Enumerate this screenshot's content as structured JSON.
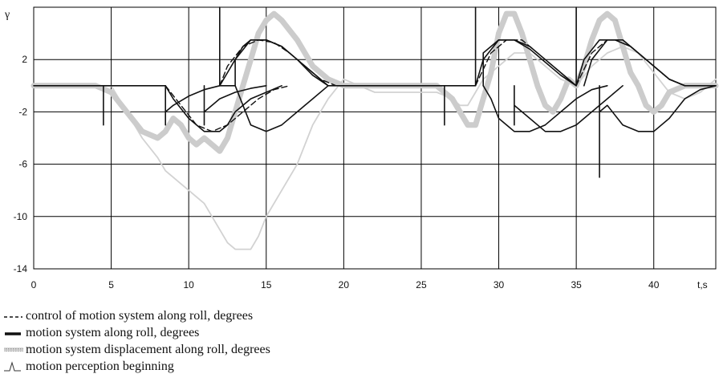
{
  "chart_data": {
    "type": "line",
    "title": "",
    "xlabel": "t,s",
    "ylabel": "γ",
    "xlim": [
      0,
      44
    ],
    "ylim": [
      -14,
      6
    ],
    "x_ticks": [
      0,
      5,
      10,
      15,
      20,
      25,
      30,
      35,
      40
    ],
    "y_ticks": [
      2,
      -2,
      -6,
      -10,
      -14
    ],
    "grid": true,
    "legend_position": "bottom-left",
    "legend": [
      {
        "symbol": "dashed-line",
        "label": "control of motion system along roll, degrees"
      },
      {
        "symbol": "solid-line",
        "label": "motion system along roll, degrees"
      },
      {
        "symbol": "hatched-thick-line",
        "label": "motion system displacement along roll, degrees"
      },
      {
        "symbol": "spike",
        "label": "motion perception beginning"
      }
    ],
    "series": [
      {
        "style": "thin-light-gray",
        "points": [
          [
            0,
            0
          ],
          [
            5,
            0
          ],
          [
            5.5,
            -1
          ],
          [
            6,
            -2
          ],
          [
            7,
            -4
          ],
          [
            8,
            -5.5
          ],
          [
            8.5,
            -6.5
          ],
          [
            9,
            -7
          ],
          [
            9.5,
            -7.5
          ],
          [
            10,
            -8
          ],
          [
            10.5,
            -8.5
          ],
          [
            11,
            -9
          ],
          [
            11.5,
            -10
          ],
          [
            12,
            -11
          ],
          [
            12.5,
            -12
          ],
          [
            13,
            -12.5
          ],
          [
            14,
            -12.5
          ],
          [
            14.5,
            -11.5
          ],
          [
            15,
            -10
          ],
          [
            16,
            -8
          ],
          [
            17,
            -6
          ],
          [
            18,
            -3
          ],
          [
            19,
            -1
          ],
          [
            20,
            0.5
          ],
          [
            21,
            0
          ],
          [
            22,
            -0.5
          ],
          [
            24,
            -0.5
          ],
          [
            26,
            -0.5
          ],
          [
            27,
            -1
          ],
          [
            27.5,
            -1.5
          ],
          [
            28,
            -1.5
          ],
          [
            28.5,
            -0.5
          ],
          [
            29,
            0.5
          ],
          [
            30,
            1.5
          ],
          [
            31,
            2.5
          ],
          [
            32,
            2.5
          ],
          [
            33,
            1.5
          ],
          [
            34,
            0.5
          ],
          [
            35,
            0
          ],
          [
            36,
            1.5
          ],
          [
            37,
            2.5
          ],
          [
            38,
            3
          ],
          [
            39,
            2.5
          ],
          [
            40,
            1
          ],
          [
            41,
            -0.5
          ],
          [
            42,
            -1
          ],
          [
            43,
            -0.5
          ],
          [
            44,
            0.5
          ]
        ]
      },
      {
        "style": "thick-light-gray",
        "points": [
          [
            0,
            0
          ],
          [
            4,
            0
          ],
          [
            5,
            -0.5
          ],
          [
            6,
            -2
          ],
          [
            7,
            -3.5
          ],
          [
            8,
            -4
          ],
          [
            8.5,
            -3.5
          ],
          [
            9,
            -2.5
          ],
          [
            9.5,
            -3
          ],
          [
            10,
            -4
          ],
          [
            10.5,
            -4.5
          ],
          [
            11,
            -4
          ],
          [
            11.5,
            -4.5
          ],
          [
            12,
            -5
          ],
          [
            12.5,
            -4
          ],
          [
            13,
            -2
          ],
          [
            13.5,
            0
          ],
          [
            14,
            2
          ],
          [
            14.5,
            4
          ],
          [
            15,
            5
          ],
          [
            15.5,
            5.5
          ],
          [
            16,
            5
          ],
          [
            17,
            3.5
          ],
          [
            18,
            1.5
          ],
          [
            19,
            0.5
          ],
          [
            20,
            0
          ],
          [
            26,
            0
          ],
          [
            26.5,
            -0.5
          ],
          [
            27,
            -1
          ],
          [
            27.5,
            -2
          ],
          [
            28,
            -3
          ],
          [
            28.5,
            -3
          ],
          [
            29,
            -1
          ],
          [
            29.5,
            1
          ],
          [
            30,
            4
          ],
          [
            30.5,
            5.5
          ],
          [
            31,
            5.5
          ],
          [
            31.5,
            4
          ],
          [
            32,
            2
          ],
          [
            32.5,
            0
          ],
          [
            33,
            -1.5
          ],
          [
            33.5,
            -2
          ],
          [
            34,
            -1
          ],
          [
            34.5,
            0.5
          ],
          [
            35,
            0
          ],
          [
            35.5,
            1.5
          ],
          [
            36,
            3.5
          ],
          [
            36.5,
            5
          ],
          [
            37,
            5.5
          ],
          [
            37.5,
            5
          ],
          [
            38,
            3
          ],
          [
            38.5,
            1
          ],
          [
            39,
            0
          ],
          [
            39.5,
            -1.5
          ],
          [
            40,
            -2
          ],
          [
            40.5,
            -1.5
          ],
          [
            41,
            -0.5
          ],
          [
            42,
            0
          ],
          [
            44,
            0
          ]
        ]
      },
      {
        "style": "solid-black",
        "points": [
          [
            0,
            0
          ],
          [
            4.5,
            0
          ],
          [
            4.5,
            -3
          ],
          [
            4.5,
            0
          ],
          [
            8.5,
            0
          ],
          [
            8.5,
            -3
          ],
          [
            8.5,
            -2
          ],
          [
            9,
            -1.5
          ],
          [
            10,
            -0.8
          ],
          [
            11,
            -0.3
          ],
          [
            12,
            0
          ],
          [
            13,
            0
          ],
          [
            13,
            2
          ],
          [
            14,
            3.5
          ],
          [
            15,
            3.5
          ],
          [
            16,
            3
          ],
          [
            17,
            2
          ],
          [
            18,
            1
          ],
          [
            19,
            0
          ],
          [
            20,
            0
          ],
          [
            28.5,
            0
          ],
          [
            28.5,
            6
          ],
          [
            28.5,
            0
          ],
          [
            29,
            2
          ],
          [
            30,
            3.5
          ],
          [
            31,
            3.5
          ],
          [
            32,
            3
          ],
          [
            33,
            2
          ],
          [
            34,
            1
          ],
          [
            35,
            0
          ],
          [
            35,
            6
          ],
          [
            35,
            0
          ],
          [
            35.5,
            2
          ],
          [
            36.5,
            3.5
          ],
          [
            37.5,
            3.5
          ],
          [
            38.5,
            3
          ],
          [
            39.5,
            2
          ],
          [
            41,
            0.5
          ],
          [
            42,
            0
          ],
          [
            44,
            0
          ]
        ]
      },
      {
        "style": "solid-black",
        "points": [
          [
            8.5,
            0
          ],
          [
            9,
            -1
          ],
          [
            10,
            -2.5
          ],
          [
            11,
            -3.5
          ],
          [
            12,
            -3.5
          ],
          [
            12.5,
            -3
          ],
          [
            13,
            -2
          ],
          [
            14,
            -1
          ],
          [
            15,
            -0.5
          ],
          [
            16,
            0
          ]
        ]
      },
      {
        "style": "solid-black",
        "points": [
          [
            11,
            0
          ],
          [
            11,
            -3
          ],
          [
            11,
            -2
          ],
          [
            11.5,
            -1.5
          ],
          [
            12,
            -1
          ],
          [
            13,
            -0.5
          ],
          [
            14,
            -0.2
          ],
          [
            15,
            0
          ]
        ]
      },
      {
        "style": "solid-black",
        "points": [
          [
            12,
            0
          ],
          [
            12,
            6
          ],
          [
            12,
            0
          ],
          [
            12.5,
            1
          ],
          [
            13,
            2
          ],
          [
            13.5,
            3
          ],
          [
            14,
            3.5
          ],
          [
            15,
            3.5
          ],
          [
            16,
            3
          ],
          [
            17,
            2
          ],
          [
            18,
            0.8
          ],
          [
            19,
            0
          ]
        ]
      },
      {
        "style": "solid-black",
        "points": [
          [
            13,
            0
          ],
          [
            13.5,
            -1.5
          ],
          [
            14,
            -3
          ],
          [
            15,
            -3.5
          ],
          [
            16,
            -3
          ],
          [
            17,
            -2
          ],
          [
            18,
            -1
          ],
          [
            19,
            0
          ]
        ]
      },
      {
        "style": "solid-black",
        "points": [
          [
            26.5,
            0
          ],
          [
            26.5,
            -3
          ],
          [
            26.5,
            0
          ]
        ]
      },
      {
        "style": "solid-black",
        "points": [
          [
            29,
            0
          ],
          [
            29.5,
            -1
          ],
          [
            30,
            -2.5
          ],
          [
            31,
            -3.5
          ],
          [
            32,
            -3.5
          ],
          [
            33,
            -3
          ],
          [
            34,
            -2
          ],
          [
            35,
            -1
          ],
          [
            36,
            -0.3
          ],
          [
            37,
            0
          ]
        ]
      },
      {
        "style": "solid-black",
        "points": [
          [
            31,
            0
          ],
          [
            31,
            -3
          ],
          [
            31,
            -1.5
          ],
          [
            32,
            -2.5
          ],
          [
            33,
            -3.5
          ],
          [
            34,
            -3.5
          ],
          [
            35,
            -3
          ],
          [
            36,
            -2
          ],
          [
            37,
            -1
          ],
          [
            38,
            0
          ]
        ]
      },
      {
        "style": "solid-black",
        "points": [
          [
            29,
            0
          ],
          [
            29,
            2.5
          ],
          [
            30,
            3.5
          ],
          [
            31,
            3.5
          ],
          [
            32,
            2.8
          ],
          [
            33,
            1.8
          ],
          [
            34,
            0.8
          ],
          [
            35,
            0
          ]
        ]
      },
      {
        "style": "solid-black",
        "points": [
          [
            36.5,
            0
          ],
          [
            36.5,
            -7
          ],
          [
            36.5,
            -2
          ],
          [
            37,
            -1.5
          ],
          [
            38,
            -3
          ],
          [
            39,
            -3.5
          ],
          [
            40,
            -3.5
          ],
          [
            41,
            -2.5
          ],
          [
            42,
            -1
          ],
          [
            43,
            -0.3
          ],
          [
            44,
            0
          ]
        ]
      },
      {
        "style": "solid-black",
        "points": [
          [
            35.5,
            0
          ],
          [
            36,
            2
          ],
          [
            37,
            3.5
          ],
          [
            38,
            3.5
          ],
          [
            39,
            2.5
          ],
          [
            40,
            1.5
          ],
          [
            41,
            0.5
          ],
          [
            42,
            0
          ]
        ]
      },
      {
        "style": "dashed-black",
        "points": [
          [
            12,
            0
          ],
          [
            12.5,
            1.5
          ],
          [
            13.5,
            3
          ],
          [
            14.5,
            3.5
          ],
          [
            15.5,
            3.3
          ],
          [
            16.5,
            2.5
          ],
          [
            17.5,
            1.5
          ],
          [
            18.5,
            0.5
          ],
          [
            19.5,
            0
          ]
        ]
      },
      {
        "style": "dashed-black",
        "points": [
          [
            28.5,
            0
          ],
          [
            29.5,
            2.5
          ],
          [
            30.5,
            3.5
          ],
          [
            31.5,
            3.5
          ],
          [
            32.5,
            2.5
          ],
          [
            33.5,
            1.5
          ],
          [
            34.5,
            0.5
          ],
          [
            35,
            0
          ]
        ]
      },
      {
        "style": "dashed-black",
        "points": [
          [
            35,
            0
          ],
          [
            36,
            2.5
          ],
          [
            37,
            3.5
          ],
          [
            38,
            3.5
          ],
          [
            39,
            2.5
          ],
          [
            40,
            1.5
          ],
          [
            41,
            0.5
          ],
          [
            42,
            0
          ]
        ]
      },
      {
        "style": "dashed-black",
        "points": [
          [
            8.5,
            0
          ],
          [
            9.5,
            -1.5
          ],
          [
            10.5,
            -3
          ],
          [
            11.5,
            -3.5
          ],
          [
            12.5,
            -3
          ],
          [
            13.5,
            -2
          ],
          [
            14.5,
            -1
          ],
          [
            15.5,
            -0.3
          ],
          [
            16.5,
            0
          ]
        ]
      }
    ]
  }
}
